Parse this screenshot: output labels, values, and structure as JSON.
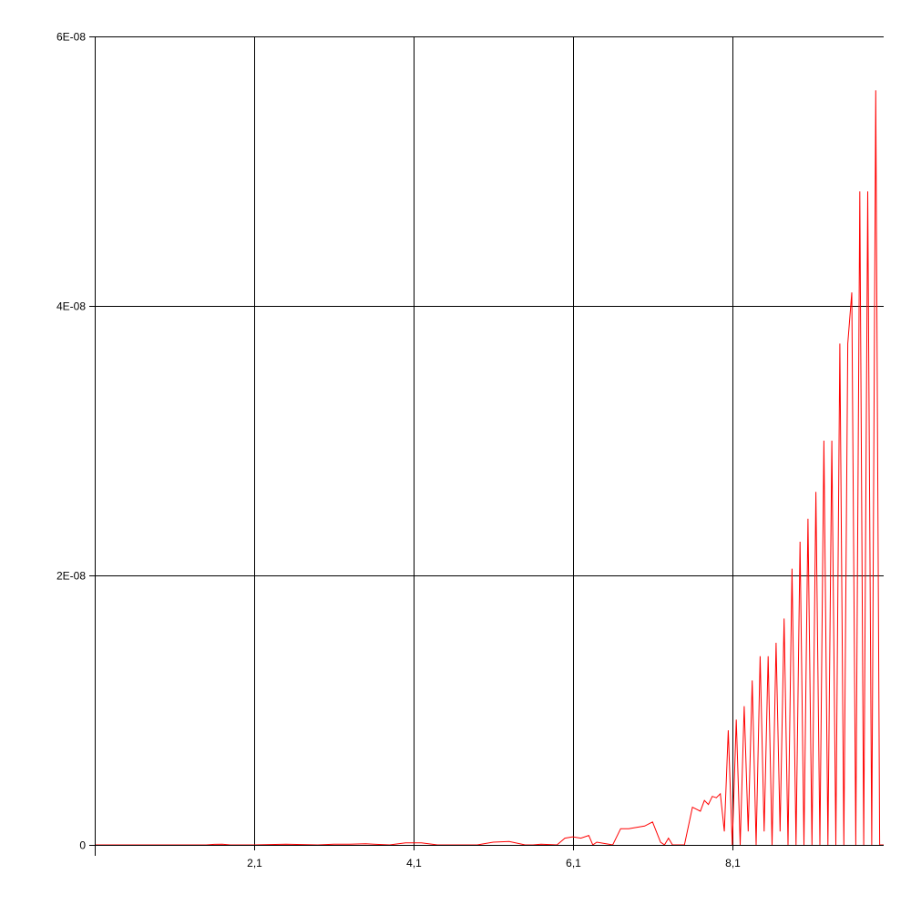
{
  "chart_data": {
    "type": "line",
    "title": "",
    "xlabel": "",
    "ylabel": "",
    "xlim": [
      0.1,
      10.0
    ],
    "ylim": [
      0,
      6e-08
    ],
    "grid": true,
    "legend": "none",
    "x_ticks": [
      {
        "value": 2.1,
        "label": "2,1"
      },
      {
        "value": 4.1,
        "label": "4,1"
      },
      {
        "value": 6.1,
        "label": "6,1"
      },
      {
        "value": 8.1,
        "label": "8,1"
      }
    ],
    "y_ticks": [
      {
        "value": 0,
        "label": "0"
      },
      {
        "value": 2e-08,
        "label": "2E-08"
      },
      {
        "value": 4e-08,
        "label": "4E-08"
      },
      {
        "value": 6e-08,
        "label": "6E-08"
      }
    ],
    "series": [
      {
        "color": "#ff0000",
        "x": [
          0.1,
          1.5,
          1.6,
          1.7,
          1.8,
          2.1,
          2.5,
          2.9,
          3.1,
          3.3,
          3.5,
          3.6,
          3.8,
          4.0,
          4.2,
          4.4,
          4.6,
          4.9,
          5.1,
          5.3,
          5.5,
          5.6,
          5.7,
          5.9,
          6.0,
          6.1,
          6.2,
          6.3,
          6.35,
          6.4,
          6.5,
          6.6,
          6.7,
          6.8,
          6.9,
          7.0,
          7.1,
          7.2,
          7.25,
          7.3,
          7.35,
          7.4,
          7.5,
          7.6,
          7.7,
          7.75,
          7.8,
          7.85,
          7.9,
          7.95,
          8.0,
          8.05,
          8.1,
          8.15,
          8.2,
          8.25,
          8.3,
          8.35,
          8.4,
          8.45,
          8.5,
          8.55,
          8.6,
          8.65,
          8.7,
          8.75,
          8.8,
          8.85,
          8.9,
          8.95,
          9.0,
          9.05,
          9.1,
          9.15,
          9.2,
          9.25,
          9.3,
          9.35,
          9.4,
          9.45,
          9.5,
          9.55,
          9.6,
          9.65,
          9.7,
          9.75,
          9.8,
          9.85,
          9.9,
          9.95,
          10.0
        ],
        "y": [
          0,
          0,
          4e-11,
          5e-11,
          0,
          0,
          5e-11,
          0,
          5e-11,
          5e-11,
          8e-11,
          5e-11,
          0,
          1.5e-10,
          1.5e-10,
          0,
          0,
          0,
          2e-10,
          2.5e-10,
          0,
          0,
          5e-11,
          0,
          5e-10,
          6e-10,
          5e-10,
          7e-10,
          0,
          2e-10,
          1e-10,
          0,
          1.2e-09,
          1.2e-09,
          1.3e-09,
          1.4e-09,
          1.7e-09,
          2e-10,
          0,
          5e-10,
          0,
          0,
          0,
          2.8e-09,
          2.5e-09,
          3.3e-09,
          3e-09,
          3.6e-09,
          3.5e-09,
          3.8e-09,
          1e-09,
          8.5e-09,
          0,
          9.3e-09,
          0,
          1.03e-08,
          1e-09,
          1.22e-08,
          0,
          1.4e-08,
          1e-09,
          1.4e-08,
          0,
          1.5e-08,
          1e-09,
          1.68e-08,
          0,
          2.05e-08,
          0,
          2.25e-08,
          0,
          2.42e-08,
          0,
          2.62e-08,
          0,
          3e-08,
          0,
          3e-08,
          0,
          3.72e-08,
          0,
          3.72e-08,
          4.1e-08,
          0,
          4.85e-08,
          0,
          4.85e-08,
          0,
          5.6e-08,
          0,
          0
        ]
      }
    ]
  }
}
